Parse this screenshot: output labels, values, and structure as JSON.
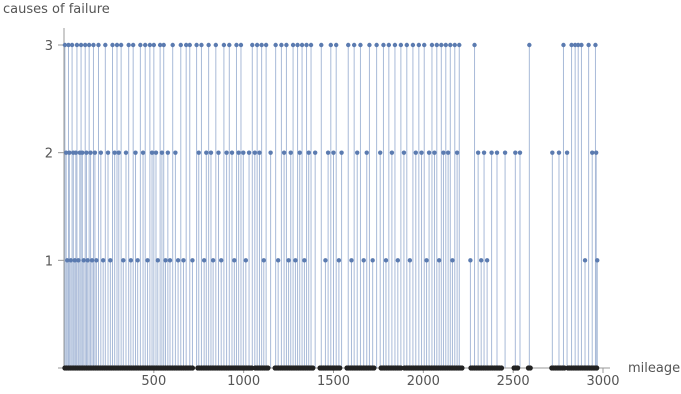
{
  "chart_data": {
    "type": "scatter",
    "style": "stem",
    "xlabel": "mileage",
    "ylabel": "causes of failure",
    "xlim": [
      0,
      3000
    ],
    "ylim": [
      0,
      3
    ],
    "x_ticks": [
      "500",
      "1000",
      "1500",
      "2000",
      "2500",
      "3000"
    ],
    "y_ticks": [
      "3",
      "2",
      "1"
    ],
    "grid": false,
    "colors": {
      "stem": "#a8bad8",
      "point": "#5b7bb0",
      "baseline_point": "#222222"
    },
    "series": [
      {
        "name": "",
        "points": [
          [
            5,
            3
          ],
          [
            12,
            2
          ],
          [
            18,
            1
          ],
          [
            25,
            3
          ],
          [
            30,
            2
          ],
          [
            38,
            1
          ],
          [
            45,
            3
          ],
          [
            52,
            2
          ],
          [
            60,
            1
          ],
          [
            66,
            2
          ],
          [
            72,
            3
          ],
          [
            80,
            1
          ],
          [
            88,
            2
          ],
          [
            95,
            3
          ],
          [
            102,
            2
          ],
          [
            110,
            1
          ],
          [
            118,
            3
          ],
          [
            125,
            2
          ],
          [
            132,
            1
          ],
          [
            140,
            3
          ],
          [
            148,
            2
          ],
          [
            156,
            1
          ],
          [
            164,
            3
          ],
          [
            172,
            2
          ],
          [
            180,
            1
          ],
          [
            192,
            3
          ],
          [
            205,
            2
          ],
          [
            218,
            1
          ],
          [
            230,
            3
          ],
          [
            245,
            2
          ],
          [
            258,
            1
          ],
          [
            270,
            3
          ],
          [
            282,
            2
          ],
          [
            295,
            3
          ],
          [
            305,
            2
          ],
          [
            318,
            3
          ],
          [
            330,
            1
          ],
          [
            345,
            2
          ],
          [
            360,
            3
          ],
          [
            372,
            1
          ],
          [
            385,
            3
          ],
          [
            398,
            2
          ],
          [
            410,
            1
          ],
          [
            425,
            3
          ],
          [
            440,
            2
          ],
          [
            452,
            3
          ],
          [
            465,
            1
          ],
          [
            478,
            3
          ],
          [
            490,
            2
          ],
          [
            500,
            3
          ],
          [
            512,
            2
          ],
          [
            522,
            1
          ],
          [
            535,
            3
          ],
          [
            545,
            2
          ],
          [
            555,
            3
          ],
          [
            565,
            1
          ],
          [
            578,
            2
          ],
          [
            590,
            1
          ],
          [
            605,
            3
          ],
          [
            620,
            2
          ],
          [
            635,
            1
          ],
          [
            650,
            3
          ],
          [
            665,
            1
          ],
          [
            680,
            3
          ],
          [
            700,
            3
          ],
          [
            715,
            1
          ],
          [
            738,
            3
          ],
          [
            750,
            2
          ],
          [
            765,
            3
          ],
          [
            780,
            1
          ],
          [
            792,
            2
          ],
          [
            805,
            3
          ],
          [
            818,
            2
          ],
          [
            830,
            1
          ],
          [
            845,
            3
          ],
          [
            860,
            2
          ],
          [
            875,
            1
          ],
          [
            890,
            3
          ],
          [
            905,
            2
          ],
          [
            920,
            3
          ],
          [
            935,
            2
          ],
          [
            948,
            1
          ],
          [
            960,
            3
          ],
          [
            972,
            2
          ],
          [
            985,
            3
          ],
          [
            998,
            2
          ],
          [
            1012,
            1
          ],
          [
            1030,
            2
          ],
          [
            1048,
            3
          ],
          [
            1062,
            2
          ],
          [
            1075,
            3
          ],
          [
            1088,
            2
          ],
          [
            1100,
            3
          ],
          [
            1112,
            1
          ],
          [
            1125,
            3
          ],
          [
            1150,
            2
          ],
          [
            1178,
            3
          ],
          [
            1192,
            1
          ],
          [
            1210,
            3
          ],
          [
            1225,
            2
          ],
          [
            1238,
            3
          ],
          [
            1250,
            1
          ],
          [
            1262,
            2
          ],
          [
            1275,
            3
          ],
          [
            1288,
            1
          ],
          [
            1300,
            3
          ],
          [
            1312,
            2
          ],
          [
            1325,
            3
          ],
          [
            1338,
            1
          ],
          [
            1350,
            3
          ],
          [
            1362,
            2
          ],
          [
            1375,
            3
          ],
          [
            1398,
            2
          ],
          [
            1432,
            3
          ],
          [
            1455,
            1
          ],
          [
            1470,
            2
          ],
          [
            1485,
            3
          ],
          [
            1500,
            2
          ],
          [
            1515,
            3
          ],
          [
            1530,
            1
          ],
          [
            1545,
            2
          ],
          [
            1582,
            3
          ],
          [
            1600,
            1
          ],
          [
            1615,
            3
          ],
          [
            1632,
            2
          ],
          [
            1650,
            3
          ],
          [
            1668,
            1
          ],
          [
            1685,
            2
          ],
          [
            1700,
            3
          ],
          [
            1718,
            1
          ],
          [
            1740,
            3
          ],
          [
            1760,
            2
          ],
          [
            1778,
            3
          ],
          [
            1792,
            1
          ],
          [
            1808,
            3
          ],
          [
            1825,
            2
          ],
          [
            1842,
            3
          ],
          [
            1858,
            1
          ],
          [
            1875,
            3
          ],
          [
            1892,
            2
          ],
          [
            1908,
            3
          ],
          [
            1925,
            1
          ],
          [
            1942,
            3
          ],
          [
            1958,
            2
          ],
          [
            1975,
            3
          ],
          [
            1990,
            2
          ],
          [
            2005,
            3
          ],
          [
            2018,
            1
          ],
          [
            2032,
            2
          ],
          [
            2048,
            3
          ],
          [
            2062,
            2
          ],
          [
            2075,
            3
          ],
          [
            2088,
            1
          ],
          [
            2100,
            3
          ],
          [
            2112,
            2
          ],
          [
            2125,
            3
          ],
          [
            2138,
            2
          ],
          [
            2150,
            3
          ],
          [
            2162,
            1
          ],
          [
            2175,
            3
          ],
          [
            2188,
            2
          ],
          [
            2200,
            3
          ],
          [
            2262,
            1
          ],
          [
            2285,
            3
          ],
          [
            2305,
            2
          ],
          [
            2322,
            1
          ],
          [
            2338,
            2
          ],
          [
            2355,
            1
          ],
          [
            2380,
            2
          ],
          [
            2410,
            2
          ],
          [
            2455,
            2
          ],
          [
            2512,
            2
          ],
          [
            2538,
            2
          ],
          [
            2590,
            3
          ],
          [
            2718,
            2
          ],
          [
            2755,
            2
          ],
          [
            2780,
            3
          ],
          [
            2800,
            2
          ],
          [
            2825,
            3
          ],
          [
            2845,
            3
          ],
          [
            2862,
            3
          ],
          [
            2880,
            3
          ],
          [
            2900,
            1
          ],
          [
            2920,
            3
          ],
          [
            2940,
            2
          ],
          [
            2958,
            3
          ],
          [
            2962,
            2
          ],
          [
            2968,
            1
          ]
        ],
        "zero_x": [
          5,
          15,
          25,
          35,
          45,
          55,
          65,
          75,
          85,
          95,
          105,
          115,
          125,
          135,
          145,
          155,
          165,
          175,
          185,
          195,
          205,
          215,
          225,
          235,
          245,
          255,
          265,
          275,
          285,
          295,
          305,
          315,
          325,
          335,
          345,
          355,
          365,
          375,
          385,
          395,
          405,
          415,
          425,
          435,
          445,
          455,
          465,
          475,
          485,
          495,
          505,
          515,
          525,
          535,
          545,
          555,
          565,
          575,
          585,
          595,
          605,
          615,
          625,
          635,
          645,
          655,
          665,
          675,
          685,
          695,
          705,
          715,
          745,
          755,
          765,
          775,
          785,
          795,
          805,
          815,
          825,
          835,
          845,
          855,
          865,
          875,
          885,
          895,
          905,
          915,
          925,
          935,
          945,
          955,
          965,
          975,
          985,
          995,
          1005,
          1015,
          1025,
          1035,
          1045,
          1065,
          1075,
          1085,
          1095,
          1105,
          1115,
          1125,
          1135,
          1175,
          1185,
          1195,
          1205,
          1215,
          1225,
          1235,
          1245,
          1255,
          1265,
          1275,
          1285,
          1295,
          1305,
          1315,
          1325,
          1335,
          1345,
          1355,
          1365,
          1375,
          1385,
          1425,
          1435,
          1445,
          1455,
          1465,
          1475,
          1485,
          1495,
          1505,
          1515,
          1525,
          1535,
          1575,
          1585,
          1595,
          1605,
          1615,
          1625,
          1635,
          1645,
          1655,
          1665,
          1675,
          1685,
          1695,
          1705,
          1715,
          1725,
          1765,
          1775,
          1785,
          1795,
          1805,
          1815,
          1825,
          1835,
          1845,
          1855,
          1865,
          1875,
          1895,
          1905,
          1915,
          1925,
          1935,
          1945,
          1955,
          1965,
          1975,
          1985,
          1995,
          2005,
          2015,
          2025,
          2035,
          2045,
          2055,
          2065,
          2075,
          2085,
          2095,
          2105,
          2115,
          2125,
          2135,
          2145,
          2155,
          2165,
          2175,
          2185,
          2195,
          2205,
          2215,
          2265,
          2275,
          2285,
          2295,
          2305,
          2315,
          2325,
          2335,
          2345,
          2355,
          2365,
          2375,
          2385,
          2395,
          2405,
          2415,
          2425,
          2435,
          2505,
          2515,
          2525,
          2585,
          2595,
          2715,
          2725,
          2735,
          2745,
          2755,
          2765,
          2775,
          2785,
          2805,
          2815,
          2825,
          2835,
          2845,
          2855,
          2865,
          2875,
          2885,
          2895,
          2905,
          2915,
          2925,
          2935,
          2945,
          2955,
          2965
        ]
      }
    ]
  }
}
